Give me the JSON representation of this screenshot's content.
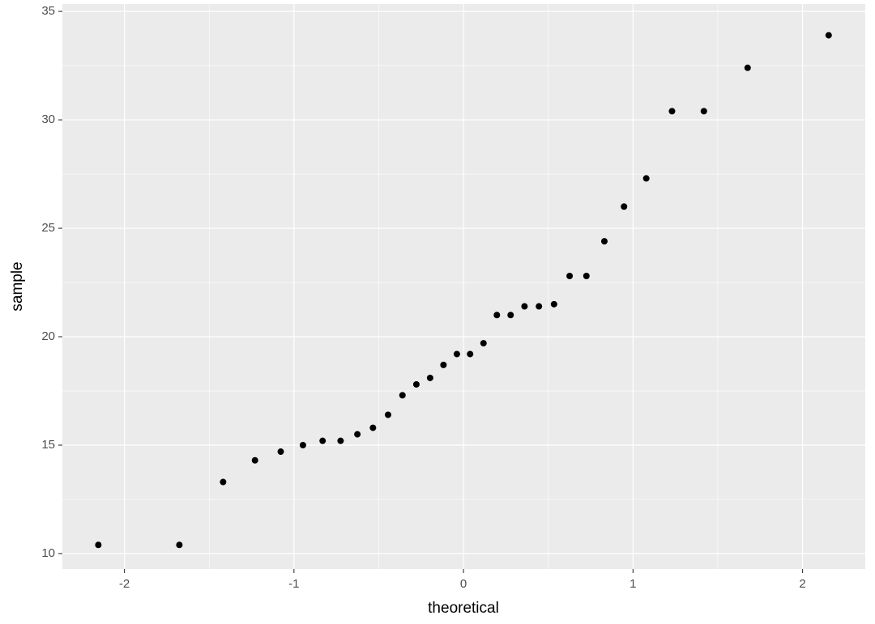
{
  "chart_data": {
    "type": "scatter",
    "x_label": "theoretical",
    "y_label": "sample",
    "x": [
      -2.154,
      -1.676,
      -1.418,
      -1.23,
      -1.078,
      -0.947,
      -0.831,
      -0.725,
      -0.626,
      -0.534,
      -0.445,
      -0.36,
      -0.278,
      -0.197,
      -0.118,
      -0.039,
      0.039,
      0.118,
      0.197,
      0.278,
      0.36,
      0.445,
      0.534,
      0.626,
      0.725,
      0.831,
      0.947,
      1.078,
      1.23,
      1.418,
      1.676,
      2.154
    ],
    "values": [
      10.4,
      10.4,
      13.3,
      14.3,
      14.7,
      15.0,
      15.2,
      15.2,
      15.5,
      15.8,
      16.4,
      17.3,
      17.8,
      18.1,
      18.7,
      19.2,
      19.2,
      19.7,
      21.0,
      21.0,
      21.4,
      21.4,
      21.5,
      22.8,
      22.8,
      24.4,
      26.0,
      27.3,
      30.4,
      30.4,
      32.4,
      33.9
    ],
    "color": "#000000",
    "xlim": [
      -2.366,
      2.37
    ],
    "xticks": [
      -2,
      -1,
      0,
      1,
      2
    ],
    "x_minor_ticks": [
      -1.5,
      -0.5,
      0.5,
      1.5
    ],
    "ylim": [
      9.29,
      35.34
    ],
    "yticks": [
      10,
      15,
      20,
      25,
      30,
      35
    ],
    "y_minor_ticks": [
      12.5,
      17.5,
      22.5,
      27.5,
      32.5
    ],
    "grid": true
  }
}
